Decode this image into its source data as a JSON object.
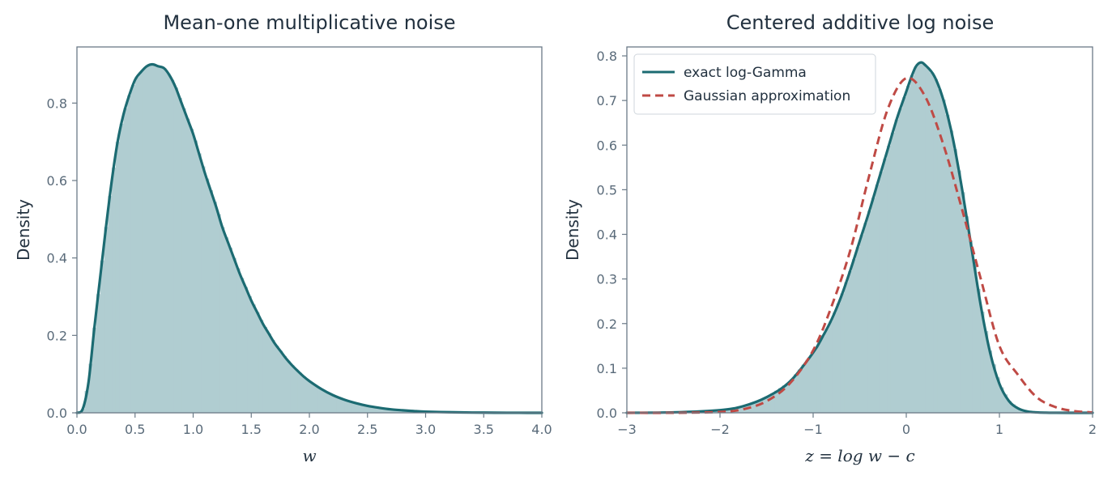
{
  "colors": {
    "hist_fill": "#b0cdd1",
    "exact_line": "#1c6b72",
    "gauss_line": "#bf4a45",
    "axis": "#6b7a87",
    "text": "#22313f",
    "tick_text": "#5a6b7a"
  },
  "chart_data": [
    {
      "type": "area",
      "title": "Mean-one multiplicative noise",
      "xlabel": "w",
      "ylabel": "Density",
      "xlim": [
        0,
        4
      ],
      "ylim": [
        0,
        0.945
      ],
      "xticks": [
        0.0,
        0.5,
        1.0,
        1.5,
        2.0,
        2.5,
        3.0,
        3.5,
        4.0
      ],
      "xtick_labels": [
        "0.0",
        "0.5",
        "1.0",
        "1.5",
        "2.0",
        "2.5",
        "3.0",
        "3.5",
        "4.0"
      ],
      "yticks": [
        0.0,
        0.2,
        0.4,
        0.6,
        0.8
      ],
      "ytick_labels": [
        "0.0",
        "0.2",
        "0.4",
        "0.6",
        "0.8"
      ],
      "grid": false,
      "series": [
        {
          "kind": "histogram",
          "x": [
            0.0,
            0.05,
            0.1,
            0.15,
            0.2,
            0.25,
            0.3,
            0.35,
            0.4,
            0.45,
            0.5,
            0.55,
            0.6,
            0.65,
            0.7,
            0.75,
            0.8,
            0.85,
            0.9,
            0.95,
            1.0,
            1.05,
            1.1,
            1.15,
            1.2,
            1.25,
            1.3,
            1.35,
            1.4,
            1.45,
            1.5,
            1.55,
            1.6,
            1.65,
            1.7,
            1.75,
            1.8,
            1.85,
            1.9,
            1.95,
            2.0,
            2.1,
            2.2,
            2.3,
            2.4,
            2.5,
            2.6,
            2.7,
            2.8,
            2.9,
            3.0,
            3.2,
            3.4,
            3.6,
            3.8,
            4.0
          ],
          "values": [
            0.0,
            0.01,
            0.08,
            0.22,
            0.35,
            0.48,
            0.6,
            0.7,
            0.77,
            0.82,
            0.86,
            0.88,
            0.895,
            0.9,
            0.895,
            0.89,
            0.87,
            0.84,
            0.8,
            0.76,
            0.72,
            0.67,
            0.62,
            0.575,
            0.53,
            0.48,
            0.44,
            0.4,
            0.36,
            0.325,
            0.29,
            0.26,
            0.23,
            0.205,
            0.18,
            0.16,
            0.14,
            0.123,
            0.108,
            0.094,
            0.082,
            0.062,
            0.046,
            0.034,
            0.025,
            0.018,
            0.013,
            0.009,
            0.0065,
            0.0045,
            0.003,
            0.0015,
            0.0007,
            0.0003,
            0.0001,
            0.0
          ]
        },
        {
          "kind": "line",
          "x": [
            0.0,
            0.05,
            0.1,
            0.15,
            0.2,
            0.25,
            0.3,
            0.35,
            0.4,
            0.45,
            0.5,
            0.55,
            0.6,
            0.65,
            0.7,
            0.75,
            0.8,
            0.85,
            0.9,
            0.95,
            1.0,
            1.05,
            1.1,
            1.15,
            1.2,
            1.25,
            1.3,
            1.35,
            1.4,
            1.45,
            1.5,
            1.55,
            1.6,
            1.65,
            1.7,
            1.75,
            1.8,
            1.85,
            1.9,
            1.95,
            2.0,
            2.1,
            2.2,
            2.3,
            2.4,
            2.5,
            2.6,
            2.7,
            2.8,
            2.9,
            3.0,
            3.2,
            3.4,
            3.6,
            3.8,
            4.0
          ],
          "values": [
            0.0,
            0.01,
            0.08,
            0.22,
            0.35,
            0.48,
            0.6,
            0.7,
            0.77,
            0.82,
            0.86,
            0.88,
            0.895,
            0.9,
            0.895,
            0.89,
            0.87,
            0.84,
            0.8,
            0.76,
            0.72,
            0.67,
            0.62,
            0.575,
            0.53,
            0.48,
            0.44,
            0.4,
            0.36,
            0.325,
            0.29,
            0.26,
            0.23,
            0.205,
            0.18,
            0.16,
            0.14,
            0.123,
            0.108,
            0.094,
            0.082,
            0.062,
            0.046,
            0.034,
            0.025,
            0.018,
            0.013,
            0.009,
            0.0065,
            0.0045,
            0.003,
            0.0015,
            0.0007,
            0.0003,
            0.0001,
            0.0
          ]
        }
      ]
    },
    {
      "type": "area",
      "title": "Centered additive log noise",
      "xlabel": "z = log w − c",
      "ylabel": "Density",
      "xlim": [
        -3,
        2
      ],
      "ylim": [
        0,
        0.82
      ],
      "xticks": [
        -3,
        -2,
        -1,
        0,
        1,
        2
      ],
      "xtick_labels": [
        "−3",
        "−2",
        "−1",
        "0",
        "1",
        "2"
      ],
      "yticks": [
        0.0,
        0.1,
        0.2,
        0.3,
        0.4,
        0.5,
        0.6,
        0.7,
        0.8
      ],
      "ytick_labels": [
        "0.0",
        "0.1",
        "0.2",
        "0.3",
        "0.4",
        "0.5",
        "0.6",
        "0.7",
        "0.8"
      ],
      "grid": false,
      "legend": "top-left",
      "series": [
        {
          "kind": "histogram",
          "x": [
            -3.0,
            -2.5,
            -2.0,
            -1.75,
            -1.5,
            -1.25,
            -1.0,
            -0.9,
            -0.8,
            -0.7,
            -0.6,
            -0.5,
            -0.4,
            -0.3,
            -0.2,
            -0.1,
            0.0,
            0.05,
            0.1,
            0.15,
            0.2,
            0.3,
            0.4,
            0.5,
            0.6,
            0.7,
            0.8,
            0.9,
            1.0,
            1.1,
            1.2,
            1.3,
            1.4,
            1.5,
            1.6,
            1.75,
            2.0
          ],
          "values": [
            0.0,
            0.001,
            0.006,
            0.015,
            0.035,
            0.07,
            0.135,
            0.17,
            0.21,
            0.26,
            0.32,
            0.385,
            0.45,
            0.52,
            0.59,
            0.66,
            0.72,
            0.75,
            0.775,
            0.785,
            0.78,
            0.755,
            0.7,
            0.615,
            0.5,
            0.37,
            0.24,
            0.135,
            0.065,
            0.027,
            0.01,
            0.003,
            0.001,
            0.0003,
            0.0001,
            0.0,
            0.0
          ]
        },
        {
          "kind": "line",
          "name": "exact log-Gamma",
          "x": [
            -3.0,
            -2.5,
            -2.0,
            -1.75,
            -1.5,
            -1.25,
            -1.0,
            -0.9,
            -0.8,
            -0.7,
            -0.6,
            -0.5,
            -0.4,
            -0.3,
            -0.2,
            -0.1,
            0.0,
            0.05,
            0.1,
            0.15,
            0.2,
            0.3,
            0.4,
            0.5,
            0.6,
            0.7,
            0.8,
            0.9,
            1.0,
            1.1,
            1.2,
            1.3,
            1.4,
            1.5,
            1.6,
            1.75,
            2.0
          ],
          "values": [
            0.0,
            0.001,
            0.006,
            0.015,
            0.035,
            0.07,
            0.135,
            0.17,
            0.21,
            0.26,
            0.32,
            0.385,
            0.45,
            0.52,
            0.59,
            0.66,
            0.72,
            0.75,
            0.775,
            0.785,
            0.78,
            0.755,
            0.7,
            0.615,
            0.5,
            0.37,
            0.24,
            0.135,
            0.065,
            0.027,
            0.01,
            0.003,
            0.001,
            0.0003,
            0.0001,
            0.0,
            0.0
          ]
        },
        {
          "kind": "dashed-line",
          "name": "Gaussian approximation",
          "x": [
            -3.0,
            -2.5,
            -2.0,
            -1.75,
            -1.5,
            -1.25,
            -1.0,
            -0.8,
            -0.6,
            -0.4,
            -0.2,
            0.0,
            0.2,
            0.4,
            0.6,
            0.8,
            1.0,
            1.2,
            1.4,
            1.6,
            1.8,
            2.0
          ],
          "values": [
            0.0,
            0.0,
            0.002,
            0.008,
            0.026,
            0.066,
            0.14,
            0.24,
            0.365,
            0.53,
            0.68,
            0.75,
            0.71,
            0.6,
            0.455,
            0.3,
            0.15,
            0.085,
            0.035,
            0.013,
            0.004,
            0.001
          ]
        }
      ]
    }
  ]
}
